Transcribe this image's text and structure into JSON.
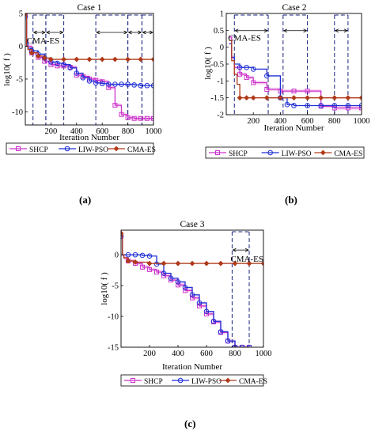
{
  "colors": {
    "shcp": "#cc33cc",
    "liw": "#1f2fd6",
    "cma": "#b03a1a",
    "dash": "#1a237e",
    "band": "#f6cdee"
  },
  "chart_data": [
    {
      "type": "line",
      "title": "Case 1",
      "panel_label": "(a)",
      "xlabel": "Iteration Number",
      "ylabel": "log10( f )",
      "xlim": [
        0,
        1000
      ],
      "ylim": [
        -12,
        5
      ],
      "xticks": [
        200,
        400,
        600,
        800,
        1000
      ],
      "yticks": [
        5,
        0,
        -5,
        -10
      ],
      "annotation": "CMA-ES",
      "intervals": [
        [
          60,
          160
        ],
        [
          160,
          300
        ],
        [
          550,
          800
        ],
        [
          800,
          910
        ],
        [
          910,
          1000
        ]
      ],
      "legend": [
        "SHCP",
        "LIW-PSO",
        "CMA-ES"
      ],
      "series": [
        {
          "name": "SHCP",
          "x": [
            0,
            10,
            20,
            50,
            100,
            150,
            200,
            250,
            300,
            350,
            400,
            450,
            500,
            550,
            600,
            650,
            700,
            750,
            800,
            850,
            900,
            950,
            1000
          ],
          "y": [
            5,
            1,
            0,
            -1,
            -1.7,
            -2.3,
            -2.8,
            -3,
            -3,
            -3.2,
            -4.4,
            -4.6,
            -5,
            -5.2,
            -5.4,
            -6.3,
            -9,
            -10.4,
            -10.9,
            -11,
            -11,
            -11,
            -11
          ]
        },
        {
          "name": "LIW-PSO",
          "x": [
            0,
            10,
            20,
            50,
            100,
            150,
            200,
            250,
            300,
            350,
            400,
            450,
            500,
            550,
            600,
            650,
            700,
            750,
            800,
            850,
            900,
            950,
            1000
          ],
          "y": [
            4.5,
            0.5,
            -0.3,
            -0.7,
            -1.2,
            -1.8,
            -2.4,
            -2.6,
            -2.8,
            -3.3,
            -4.1,
            -4.8,
            -5.3,
            -5.6,
            -5.7,
            -5.8,
            -5.8,
            -5.8,
            -5.8,
            -5.9,
            -6,
            -6,
            -6
          ]
        },
        {
          "name": "CMA-ES",
          "x": [
            0,
            10,
            20,
            50,
            100,
            150,
            200,
            300,
            400,
            500,
            600,
            700,
            800,
            900,
            1000
          ],
          "y": [
            5,
            0,
            -0.5,
            -1,
            -1.5,
            -1.8,
            -2,
            -2,
            -2,
            -2,
            -2,
            -2,
            -2,
            -2,
            -2
          ]
        }
      ]
    },
    {
      "type": "line",
      "title": "Case 2",
      "panel_label": "(b)",
      "xlabel": "Iteration Number",
      "ylabel": "log10( f )",
      "xlim": [
        0,
        1000
      ],
      "ylim": [
        -2,
        1
      ],
      "xticks": [
        200,
        400,
        600,
        800,
        1000
      ],
      "yticks": [
        1,
        0.5,
        0,
        -0.5,
        -1,
        -1.5,
        -2
      ],
      "annotation": "CMA-ES",
      "intervals": [
        [
          60,
          310
        ],
        [
          420,
          600
        ],
        [
          800,
          900
        ]
      ],
      "legend": [
        "SHCP",
        "LIW-PSO",
        "CMA-ES"
      ],
      "series": [
        {
          "name": "SHCP",
          "x": [
            20,
            40,
            60,
            100,
            150,
            200,
            300,
            400,
            500,
            600,
            700,
            800,
            900,
            1000
          ],
          "y": [
            0.3,
            -0.3,
            -0.6,
            -0.8,
            -0.9,
            -1.05,
            -1.25,
            -1.3,
            -1.3,
            -1.3,
            -1.75,
            -1.8,
            -1.8,
            -1.8
          ]
        },
        {
          "name": "LIW-PSO",
          "x": [
            20,
            40,
            60,
            100,
            150,
            200,
            300,
            400,
            450,
            500,
            600,
            700,
            800,
            900,
            1000
          ],
          "y": [
            0.1,
            -0.3,
            -0.5,
            -0.6,
            -0.6,
            -0.65,
            -0.85,
            -1.5,
            -1.7,
            -1.73,
            -1.73,
            -1.73,
            -1.73,
            -1.73,
            -1.73
          ]
        },
        {
          "name": "CMA-ES",
          "x": [
            20,
            40,
            60,
            80,
            100,
            150,
            200,
            300,
            400,
            500,
            600,
            700,
            800,
            900,
            1000
          ],
          "y": [
            0.2,
            -0.4,
            -0.8,
            -1.1,
            -1.5,
            -1.5,
            -1.5,
            -1.5,
            -1.5,
            -1.5,
            -1.5,
            -1.5,
            -1.5,
            -1.5,
            -1.5
          ]
        }
      ]
    },
    {
      "type": "line",
      "title": "Case 3",
      "panel_label": "(c)",
      "xlabel": "Iteration Number",
      "ylabel": "log10( f )",
      "xlim": [
        0,
        1000
      ],
      "ylim": [
        -15,
        4
      ],
      "xticks": [
        200,
        400,
        600,
        800,
        1000
      ],
      "yticks": [
        0,
        -5,
        -10,
        -15
      ],
      "annotation": "CMA-ES",
      "intervals": [
        [
          780,
          900
        ]
      ],
      "legend": [
        "SHCP",
        "LIW-PSO",
        "CMA-ES"
      ],
      "series": [
        {
          "name": "SHCP",
          "x": [
            0,
            10,
            20,
            50,
            100,
            150,
            200,
            250,
            300,
            350,
            400,
            450,
            500,
            550,
            600,
            650,
            700,
            750,
            800,
            850,
            900
          ],
          "y": [
            3,
            0,
            -0.5,
            -1,
            -1.4,
            -2,
            -2.4,
            -2.8,
            -3.4,
            -4.1,
            -4.9,
            -5.8,
            -7,
            -8.3,
            -9.6,
            -10.9,
            -12.6,
            -14,
            -15,
            -15,
            -15
          ]
        },
        {
          "name": "LIW-PSO",
          "x": [
            0,
            10,
            20,
            50,
            100,
            150,
            200,
            250,
            300,
            350,
            400,
            450,
            500,
            550,
            600,
            650,
            700,
            750,
            800,
            850,
            900
          ],
          "y": [
            3,
            0,
            0,
            0,
            0,
            -0.1,
            -0.2,
            -1.5,
            -3,
            -3.8,
            -4.4,
            -5.3,
            -6.5,
            -7.8,
            -9.2,
            -10.8,
            -12.5,
            -14,
            -15,
            -15,
            -15
          ]
        },
        {
          "name": "CMA-ES",
          "x": [
            0,
            10,
            20,
            50,
            100,
            200,
            300,
            400,
            500,
            600,
            700,
            800,
            900,
            1000
          ],
          "y": [
            3.5,
            0,
            -0.5,
            -1,
            -1.2,
            -1.4,
            -1.4,
            -1.4,
            -1.4,
            -1.4,
            -1.4,
            -1.4,
            -1.4,
            -1.4
          ]
        }
      ]
    }
  ]
}
